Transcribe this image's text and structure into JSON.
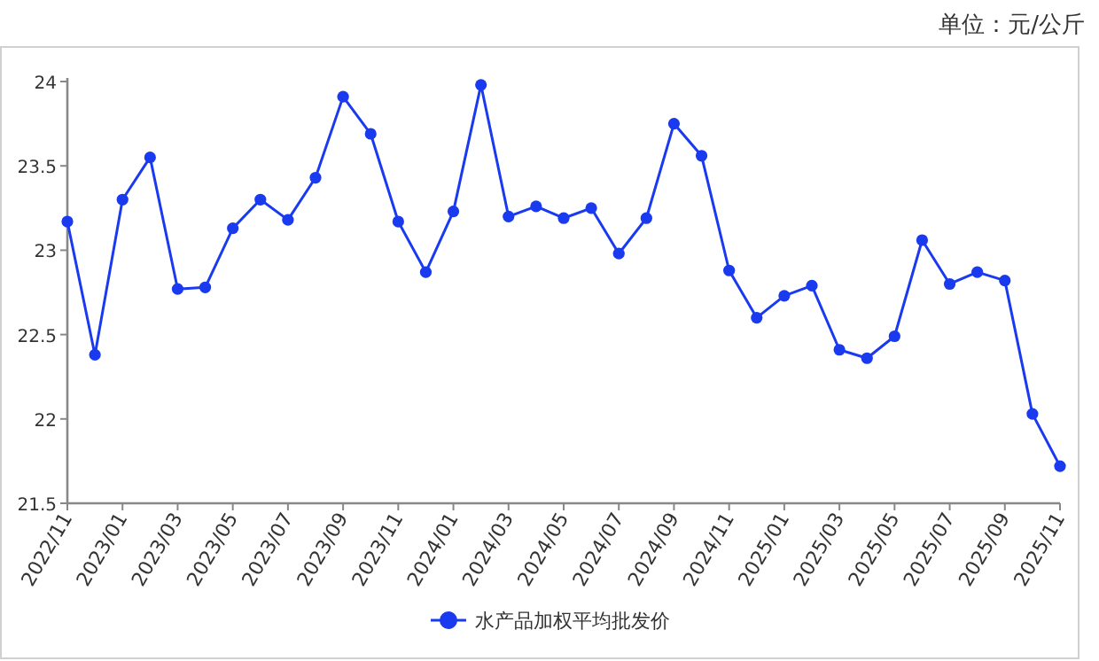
{
  "chart_data": {
    "type": "line",
    "annotations": [
      "单位：元/公斤"
    ],
    "categories": [
      "2022/11",
      null,
      "2023/01",
      null,
      "2023/03",
      null,
      "2023/05",
      null,
      "2023/07",
      null,
      "2023/09",
      null,
      "2023/11",
      null,
      "2024/01",
      null,
      "2024/03",
      null,
      "2024/05",
      null,
      "2024/07",
      null,
      "2024/09",
      null,
      "2024/11",
      null,
      "2025/01",
      null,
      "2025/03",
      null,
      "2025/05",
      null,
      "2025/07",
      null,
      "2025/09",
      null,
      "2025/11"
    ],
    "series": [
      {
        "name": "水产品加权平均批发价",
        "color": "#1a3af0",
        "values": [
          23.17,
          22.38,
          23.3,
          23.55,
          22.77,
          22.78,
          23.13,
          23.3,
          23.18,
          23.43,
          23.91,
          23.69,
          23.17,
          22.87,
          23.23,
          23.98,
          23.2,
          23.26,
          23.19,
          23.25,
          22.98,
          23.19,
          23.75,
          23.56,
          22.88,
          22.6,
          22.73,
          22.79,
          22.41,
          22.36,
          22.49,
          23.06,
          22.8,
          22.87,
          22.82,
          22.03,
          21.72
        ]
      }
    ],
    "ylim": [
      21.5,
      24
    ],
    "yticks": [
      21.5,
      22,
      22.5,
      23,
      23.5,
      24
    ],
    "grid": false,
    "legend": "bottom",
    "marker": "circle",
    "line_style": "solid"
  }
}
